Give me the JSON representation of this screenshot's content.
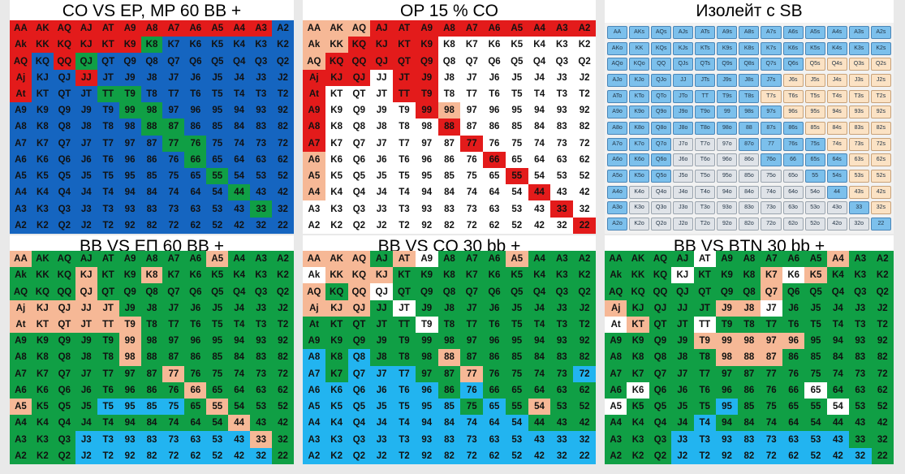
{
  "colors": {
    "blue": "#1565c0",
    "green": "#109f45",
    "red": "#e31b1b",
    "peach": "#f6b896",
    "white": "#ffffff",
    "light": "#22b4f0",
    "chip_blue": "#7cc0ec",
    "chip_peach": "#fbe2c4",
    "chip_grey": "#dfe3e8"
  },
  "panels": [
    {
      "title": "CO VS EP, MP 60 BB +",
      "grid": [
        "AA|r AK|r AQ|r AJ|r AT|r A9|r A8|r A7|r A6|r A5|r A4|r A3|r A2|b",
        "Ak|r KK|r KQ|r KJ|r KT|r K9|r K8|g K7|b K6|b K5|b K4|b K3|b K2|b",
        "AQ|r KQ|b QQ|r QJ|g QT|b Q9|b Q8|b Q7|b Q6|b Q5|b Q4|b Q3|b Q2|b",
        "Aj|r KJ|b QJ|b JJ|r JT|b J9|b J8|b J7|b J6|b J5|b J4|b J3|b J2|b",
        "At|r KT|b QT|b JT|b TT|g T9|g T8|b T7|b T6|b T5|b T4|b T3|b T2|b",
        "A9|b K9|b Q9|b J9|b T9|b 99|g 98|g 97|b 96|b 95|b 94|b 93|b 92|b",
        "A8|b K8|b Q8|b J8|b T8|b 98|b 88|g 87|g 86|b 85|b 84|b 83|b 82|b",
        "A7|b K7|b Q7|b J7|b T7|b 97|b 87|b 77|g 76|g 75|b 74|b 73|b 72|b",
        "A6|b K6|b Q6|b J6|b T6|b 96|b 86|b 76|b 66|g 65|b 64|b 63|b 62|b",
        "A5|b K5|b Q5|b J5|b T5|b 95|b 85|b 75|b 65|b 55|g 54|b 53|b 52|b",
        "A4|b K4|b Q4|b J4|b T4|b 94|b 84|b 74|b 64|b 54|b 44|g 43|b 42|b",
        "A3|b K3|b Q3|b J3|b T3|b 93|b 83|b 73|b 63|b 53|b 43|b 33|g 32|b",
        "A2|b K2|b Q2|b J2|b T2|b 92|b 82|b 72|b 62|b 52|b 42|b 32|b 22|b"
      ]
    },
    {
      "title": "OP 15 % CO",
      "grid": [
        "AA|p AK|p AQ|p AJ|r AT|r A9|r A8|r A7|r A6|r A5|r A4|r A3|r A2|r",
        "Ak|p KK|p KQ|r KJ|r KT|r K9|r K8|w K7|w K6|w K5|w K4|w K3|w K2|w",
        "AQ|p KQ|r QQ|r QJ|r QT|r Q9|r Q8|w Q7|w Q6|w Q5|w Q4|w Q3|w Q2|w",
        "Aj|r KJ|r QJ|r JJ|w JT|r J9|r J8|w J7|w J6|w J5|w J4|w J3|w J2|w",
        "At|r KT|w QT|w JT|w TT|r T9|r T8|w T7|w T6|w T5|w T4|w T3|w T2|w",
        "A9|r K9|w Q9|w J9|w T9|w 99|r 98|p 97|w 96|w 95|w 94|w 93|w 92|w",
        "A8|r K8|w Q8|w J8|w T8|w 98|w 88|r 87|w 86|w 85|w 84|w 83|w 82|w",
        "A7|r K7|w Q7|w J7|w T7|w 97|w 87|w 77|r 76|w 75|w 74|w 73|w 72|w",
        "A6|p K6|w Q6|w J6|w T6|w 96|w 86|w 76|w 66|r 65|w 64|w 63|w 62|w",
        "A5|p K5|w Q5|w J5|w T5|w 95|w 85|w 75|w 65|w 55|r 54|w 53|w 52|w",
        "A4|p K4|w Q4|w J4|w T4|w 94|w 84|w 74|w 64|w 54|w 44|r 43|w 42|w",
        "A3|w K3|w Q3|w J3|w T3|w 93|w 83|w 73|w 63|w 53|w 43|w 33|r 32|w",
        "A2|w K2|w Q2|w J2|w T2|w 92|w 82|w 72|w 62|w 52|w 42|w 32|w 22|r"
      ]
    },
    {
      "title": "Изолейт с SB",
      "grid": [
        "AA|c AKs|c AQs|c AJs|c ATs|c A9s|c A8s|c A7s|c A6s|c A5s|c A4s|c A3s|c A2s|c",
        "AKo|c KK|c KQs|c KJs|c KTs|c K9s|c K8s|c K7s|c K6s|c K5s|c K4s|c K3s|c K2s|c",
        "AQo|c KQo|c QQ|c QJs|c QTs|c Q9s|c Q8s|c Q7s|c Q6s|c Q5s|e Q4s|e Q3s|e Q2s|e",
        "AJo|c KJo|c QJo|c JJ|c JTs|c J9s|c J8s|c J7s|c J6s|e J5s|e J4s|e J3s|e J2s|e",
        "ATo|c KTo|c QTo|c JTo|c TT|c T9s|c T8s|c T7s|e T6s|e T5s|e T4s|e T3s|e T2s|e",
        "A9o|c K9o|c Q9o|c J9o|c T9o|c 99|c 98s|c 97s|c 96s|e 95s|e 94s|e 93s|e 92s|e",
        "A8o|c K8o|c Q8o|c J8o|c T8o|c 98o|c 88|c 87s|c 86s|c 85s|e 84s|e 83s|e 82s|e",
        "A7o|c K7o|c Q7o|c J7o|y T7o|y 97o|y 87o|c 77|c 76s|c 75s|c 74s|e 73s|e 72s|e",
        "A6o|c K6o|c Q6o|c J6o|y T6o|y 96o|y 86o|y 76o|c 66|c 65s|c 64s|c 63s|e 62s|e",
        "A5o|c K5o|c Q5o|c J5o|y T5o|y 95o|y 85o|y 75o|y 65o|y 55|c 54s|c 53s|e 52s|e",
        "A4o|c K4o|y Q4o|y J4o|y T4o|y 94o|y 84o|y 74o|y 64o|y 54o|y 44|c 43s|e 42s|e",
        "A3o|c K3o|y Q3o|y J3o|y T3o|y 93o|y 83o|y 73o|y 63o|y 53o|y 43o|y 33|c 32s|e",
        "A2o|c K2o|y Q2o|y J2o|y T2o|y 92o|y 82o|y 72o|y 62o|y 52o|y 42o|y 32o|y 22|c"
      ]
    },
    {
      "title": "BB VS ЕП 60 BB +",
      "grid": [
        "AA|p AK|g AQ|g AJ|g AT|g A9|g A8|g A7|g A6|g A5|p A4|g A3|g A2|g",
        "Ak|g KK|g KQ|g KJ|p KT|g K9|g K8|p K7|g K6|g K5|g K4|g K3|g K2|g",
        "AQ|g KQ|g QQ|g QJ|p QT|g Q9|g Q8|g Q7|g Q6|g Q5|g Q4|g Q3|g Q2|g",
        "Aj|p KJ|p QJ|p JJ|p JT|p J9|g J8|g J7|g J6|g J5|g J4|g J3|g J2|g",
        "At|p KT|p QT|p JT|p TT|p T9|p T8|g T7|g T6|g T5|g T4|g T3|g T2|g",
        "A9|g K9|g Q9|g J9|g T9|g 99|p 98|g 97|g 96|g 95|g 94|g 93|g 92|g",
        "A8|g K8|g Q8|g J8|g T8|g 98|p 88|g 87|g 86|g 85|g 84|g 83|g 82|g",
        "A7|g K7|g Q7|g J7|g T7|g 97|g 87|g 77|p 76|g 75|g 74|g 73|g 72|g",
        "A6|g K6|g Q6|g J6|g T6|g 96|g 86|g 76|g 66|p 65|g 64|g 63|g 62|g",
        "A5|p K5|g Q5|g J5|g T5|l 95|l 85|l 75|l 65|g 55|p 54|g 53|g 52|g",
        "A4|g K4|g Q4|g J4|g T4|g 94|g 84|g 74|g 64|g 54|g 44|p 43|g 42|g",
        "A3|g K3|g Q3|g J3|l T3|l 93|l 83|l 73|l 63|l 53|l 43|l 33|p 32|g",
        "A2|g K2|g Q2|g J2|l T2|l 92|l 82|l 72|l 62|l 52|l 42|l 32|l 22|g"
      ]
    },
    {
      "title": "BB VS CO 30 bb +",
      "grid": [
        "AA|p AK|p AQ|p AJ|g AT|p A9|w A8|g A7|g A6|g A5|p A4|g A3|g A2|g",
        "Ak|w KK|p KQ|p KJ|p KT|g K9|g K8|g K7|g K6|g K5|g K4|g K3|g K2|g",
        "AQ|p KQ|g QQ|p QJ|w QT|g Q9|g Q8|g Q7|g Q6|g Q5|g Q4|g Q3|g Q2|g",
        "Aj|p KJ|p QJ|p JJ|g JT|w J9|g J8|g J7|g J6|g J5|g J4|g J3|g J2|g",
        "At|g KT|g QT|g JT|g TT|g T9|w T8|g T7|g T6|g T5|g T4|g T3|g T2|g",
        "A9|g K9|g Q9|g J9|g T9|g 99|g 98|g 97|g 96|g 95|g 94|g 93|g 92|g",
        "A8|l K8|g Q8|l J8|g T8|g 98|g 88|p 87|g 86|g 85|g 84|g 83|g 82|g",
        "A7|l K7|g Q7|l J7|l T7|l 97|g 87|g 77|p 76|g 75|g 74|g 73|g 72|l",
        "A6|l K6|l Q6|l J6|l T6|l 96|l 86|g 76|l 66|g 65|g 64|g 63|g 62|g",
        "A5|l K5|l Q5|l J5|l T5|l 95|l 85|l 75|g 65|l 55|g 54|p 53|g 52|g",
        "A4|l K4|l Q4|l J4|l T4|l 94|l 84|l 74|l 64|l 54|l 44|g 43|g 42|g",
        "A3|l K3|l Q3|l J3|l T3|l 93|l 83|l 73|l 63|l 53|l 43|l 33|l 32|l",
        "A2|l K2|l Q2|l J2|l T2|l 92|l 82|l 72|l 62|l 52|l 42|l 32|l 22|l"
      ]
    },
    {
      "title": "BB VS BTN 30 bb +",
      "grid": [
        "AA|g AK|g AQ|g AJ|g AT|w A9|g A8|g A7|g A6|g A5|g A4|p A3|g A2|g",
        "Ak|g KK|g KQ|g KJ|w KT|g K9|g K8|g K7|p K6|w K5|p K4|g K3|g K2|g",
        "AQ|g KQ|g QQ|g QJ|g QT|g Q9|g Q8|g Q7|p Q6|g Q5|g Q4|g Q3|g Q2|g",
        "Aj|p KJ|g QJ|g JJ|g JT|g J9|p J8|p J7|w J6|g J5|g J4|g J3|g J2|g",
        "At|w KT|p QT|g JT|g TT|w T9|g T8|g T7|g T6|g T5|g T4|g T3|g T2|g",
        "A9|g K9|g Q9|g J9|g T9|p 99|p 98|p 97|p 96|p 95|g 94|g 93|g 92|g",
        "A8|g K8|g Q8|g J8|g T8|g 98|p 88|p 87|p 86|g 85|g 84|g 83|g 82|g",
        "A7|g K7|g Q7|g J7|g T7|g 97|g 87|g 77|g 76|g 75|g 74|g 73|g 72|g",
        "A6|g K6|w Q6|g J6|g T6|g 96|g 86|g 76|g 66|g 65|w 64|g 63|g 62|g",
        "A5|w K5|g Q5|g J5|g T5|g 95|l 85|g 75|g 65|g 55|g 54|w 53|g 52|g",
        "A4|g K4|g Q4|g J4|g T4|l 94|g 84|g 74|g 64|g 54|g 44|g 43|g 42|g",
        "A3|g K3|g Q3|g J3|l T3|l 93|l 83|l 73|l 63|l 53|l 43|l 33|g 32|g",
        "A2|g K2|g Q2|g J2|l T2|l 92|l 82|l 72|l 62|l 52|l 42|l 32|l 22|g"
      ]
    }
  ]
}
